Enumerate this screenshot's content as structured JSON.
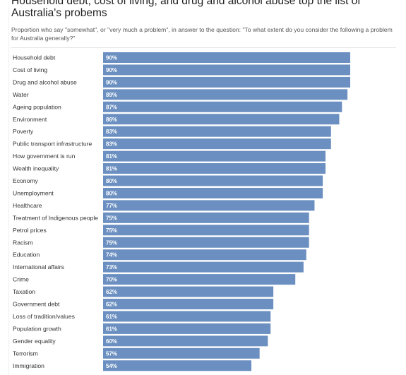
{
  "chart_data": {
    "type": "bar",
    "orientation": "horizontal",
    "title": "Household debt, cost of living, and drug and alcohol abuse top the list of Australia's probems",
    "subtitle": "Proportion who say \"somewhat\", or \"very much a problem\", in answer to the question: \"To what extent do you consider the following a problem for Australia generally?\"",
    "categories": [
      "Household debt",
      "Cost of living",
      "Drug and alcohol abuse",
      "Water",
      "Ageing population",
      "Environment",
      "Poverty",
      "Public transport infrastructure",
      "How government is run",
      "Wealth inequality",
      "Economy",
      "Unemployment",
      "Healthcare",
      "Treatment of Indigenous people",
      "Petrol prices",
      "Racism",
      "Education",
      "International affairs",
      "Crime",
      "Taxation",
      "Government debt",
      "Loss of tradition/values",
      "Population growth",
      "Gender equality",
      "Terrorism",
      "Immigration"
    ],
    "values": [
      90,
      90,
      90,
      89,
      87,
      86,
      83,
      83,
      81,
      81,
      80,
      80,
      77,
      75,
      75,
      75,
      74,
      73,
      70,
      62,
      62,
      61,
      61,
      60,
      57,
      54
    ],
    "value_labels": [
      "90%",
      "90%",
      "90%",
      "89%",
      "87%",
      "86%",
      "83%",
      "83%",
      "81%",
      "81%",
      "80%",
      "80%",
      "77%",
      "75%",
      "75%",
      "75%",
      "74%",
      "73%",
      "70%",
      "62%",
      "62%",
      "61%",
      "61%",
      "60%",
      "57%",
      "54%"
    ],
    "xlim": [
      0,
      90
    ],
    "bar_color": "#6a8fc0",
    "label_color": "#ffffff",
    "grid": false,
    "legend": "none"
  }
}
